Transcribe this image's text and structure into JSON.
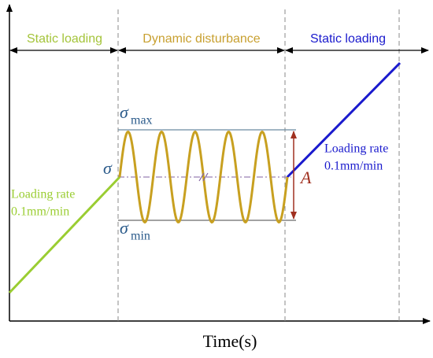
{
  "header": {
    "left": "Static loading",
    "middle": "Dynamic disturbance",
    "right": "Static loading"
  },
  "annotations": {
    "left_rate": {
      "line1": "Loading rate",
      "line2": "0.1mm/min"
    },
    "right_rate": {
      "line1": "Loading rate",
      "line2": "0.1mm/min"
    },
    "sigma": "σ",
    "sigma_max": {
      "symbol": "σ",
      "subscript": "max"
    },
    "sigma_min": {
      "symbol": "σ",
      "subscript": "min"
    },
    "amplitude": "A"
  },
  "axis": {
    "x_label": "Time(s)"
  }
}
